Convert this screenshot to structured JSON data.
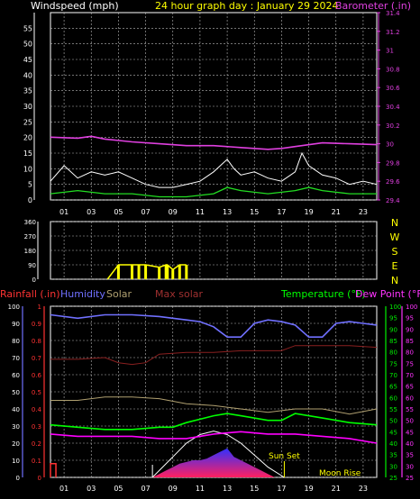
{
  "colors": {
    "bg": "#000000",
    "grid": "#b8b8b8",
    "wind": "#ffffff",
    "wind_avg": "#22dd22",
    "baro": "#e040e0",
    "dir": "#ffff00",
    "rain": "#ff3333",
    "humidity": "#7070ff",
    "solar": "#b0a070",
    "maxsolar": "#8a2020",
    "temp": "#00ff00",
    "dew": "#ff00ff",
    "axis_green": "#00ee00",
    "axis_pink": "#ff33ff",
    "title": "#ffff00"
  },
  "titles": {
    "windspeed": "Windspeed (mph)",
    "main": "24 hour graph day : January 29 2024",
    "barometer": "Barometer (.in)",
    "rainfall": "Rainfall (.in)",
    "humidity": "Humidity",
    "solar": "Solar",
    "maxsolar": "Max solar",
    "temperature": "Temperature (°F)",
    "dewpoint": "Dew Point (°F)",
    "sunset": "Sun Set",
    "moonrise": "Moon Rise"
  },
  "x_hours": [
    "01",
    "03",
    "05",
    "07",
    "09",
    "11",
    "13",
    "15",
    "17",
    "19",
    "21",
    "23"
  ],
  "compass": [
    "N",
    "W",
    "S",
    "E",
    "N"
  ],
  "chart_data": [
    {
      "type": "line",
      "name": "wind_baro",
      "ylim_left": [
        0,
        60
      ],
      "yticks_left": [
        "55",
        "50",
        "45",
        "40",
        "35",
        "30",
        "25",
        "20",
        "15",
        "10",
        "5",
        "0"
      ],
      "ylim_right": [
        29.4,
        31.4
      ],
      "yticks_right": [
        "31.4",
        "31.2",
        "31",
        "30.8",
        "30.6",
        "30.4",
        "30.2",
        "30",
        "29.8",
        "29.6",
        "29.4"
      ],
      "barometer": {
        "x": [
          0,
          2,
          3,
          4,
          6,
          8,
          10,
          12,
          14,
          16,
          17,
          18,
          20,
          22,
          24
        ],
        "y": [
          30.07,
          30.06,
          30.08,
          30.05,
          30.02,
          30.0,
          29.98,
          29.98,
          29.96,
          29.94,
          29.95,
          29.97,
          30.01,
          30.0,
          29.99
        ]
      },
      "wind_avg": {
        "x": [
          0,
          2,
          4,
          6,
          8,
          10,
          12,
          13,
          14,
          16,
          18,
          19,
          20,
          22,
          24
        ],
        "y": [
          2,
          3,
          2,
          2,
          1,
          1,
          2,
          4,
          3,
          2,
          3,
          4,
          3,
          2,
          2
        ]
      },
      "wind_gust": {
        "x": [
          0,
          1,
          2,
          3,
          4,
          5,
          6,
          7,
          8,
          9,
          10,
          11,
          12,
          12.5,
          13,
          13.5,
          14,
          15,
          16,
          17,
          18,
          18.5,
          19,
          20,
          21,
          22,
          23,
          24
        ],
        "y": [
          6,
          11,
          7,
          9,
          8,
          9,
          7,
          5,
          4,
          4,
          5,
          6,
          9,
          11,
          13,
          10,
          8,
          9,
          7,
          6,
          9,
          15,
          11,
          8,
          7,
          5,
          6,
          5
        ]
      }
    },
    {
      "type": "line",
      "name": "wind_direction",
      "ylim": [
        0,
        360
      ],
      "yticks": [
        "360",
        "270",
        "180",
        "90",
        "0"
      ],
      "direction": {
        "x": [
          4.2,
          5.0,
          6.0,
          6.5,
          7.0,
          8.0,
          8.5,
          8.6,
          9.0,
          9.5,
          10.0
        ],
        "y": [
          0,
          90,
          90,
          90,
          90,
          75,
          90,
          90,
          60,
          90,
          90
        ]
      }
    },
    {
      "type": "line",
      "name": "temp_hum",
      "ylim_left": [
        0,
        100
      ],
      "yticks_left": [
        "100",
        "90",
        "80",
        "70",
        "60",
        "50",
        "40",
        "30",
        "20",
        "10",
        "0"
      ],
      "rain_ticks": [
        "1",
        "0.9",
        "0.8",
        "0.7",
        "0.6",
        "0.5",
        "0.4",
        "0.3",
        "0.2",
        "0.1",
        "0"
      ],
      "ylim_temp": [
        25,
        100
      ],
      "yticks_temp": [
        "100",
        "95",
        "90",
        "85",
        "80",
        "75",
        "70",
        "65",
        "60",
        "55",
        "50",
        "45",
        "40",
        "35",
        "30",
        "25"
      ],
      "humidity": {
        "x": [
          0,
          2,
          4,
          6,
          8,
          10,
          11,
          12,
          13,
          14,
          15,
          16,
          17,
          18,
          19,
          20,
          21,
          22,
          23,
          24
        ],
        "y": [
          95,
          93,
          95,
          95,
          94,
          92,
          91,
          88,
          82,
          82,
          90,
          92,
          91,
          89,
          82,
          82,
          90,
          91,
          90,
          89
        ]
      },
      "maxsolar": {
        "x": [
          0,
          2,
          4,
          5,
          6,
          7,
          8,
          10,
          12,
          14,
          16,
          17,
          18,
          20,
          22,
          24
        ],
        "y": [
          69,
          69,
          70,
          67,
          66,
          67,
          72,
          73,
          73,
          74,
          74,
          74,
          77,
          77,
          77,
          76
        ]
      },
      "solar": {
        "x": [
          0,
          2,
          4,
          6,
          8,
          10,
          12,
          14,
          16,
          18,
          20,
          22,
          24
        ],
        "y": [
          45,
          45,
          47,
          47,
          46,
          43,
          42,
          40,
          38,
          40,
          40,
          37,
          40
        ]
      },
      "temperature": {
        "x": [
          0,
          2,
          4,
          6,
          8,
          9,
          10,
          12,
          13,
          14,
          16,
          17,
          18,
          20,
          22,
          24
        ],
        "y": [
          48,
          47,
          46,
          46,
          47,
          47,
          49,
          52,
          53,
          52,
          50,
          50,
          53,
          51,
          49,
          48
        ]
      },
      "dewpoint": {
        "x": [
          0,
          2,
          4,
          6,
          8,
          10,
          12,
          14,
          16,
          18,
          20,
          22,
          23,
          24
        ],
        "y": [
          44,
          43,
          43,
          43,
          42,
          42,
          44,
          45,
          44,
          44,
          43,
          42,
          41,
          40
        ]
      },
      "solar_radiation": {
        "x": [
          7.5,
          8,
          8.5,
          9,
          9.5,
          10,
          10.5,
          11,
          11.5,
          12,
          12.5,
          13,
          13.5,
          14,
          14.5,
          15,
          15.5,
          16,
          16.5
        ],
        "y": [
          0,
          2,
          4,
          6,
          8,
          9,
          10,
          10,
          11,
          13,
          15,
          17,
          12,
          10,
          8,
          6,
          4,
          2,
          0
        ]
      },
      "max_solar_curve": {
        "x": [
          7.5,
          9,
          10,
          11,
          12,
          13,
          14,
          15,
          16,
          17.2
        ],
        "y": [
          0,
          12,
          20,
          25,
          27,
          25,
          20,
          13,
          6,
          0
        ]
      },
      "rain": {
        "x": [
          0,
          0.4
        ],
        "y": [
          0.08,
          0.08
        ]
      }
    }
  ]
}
